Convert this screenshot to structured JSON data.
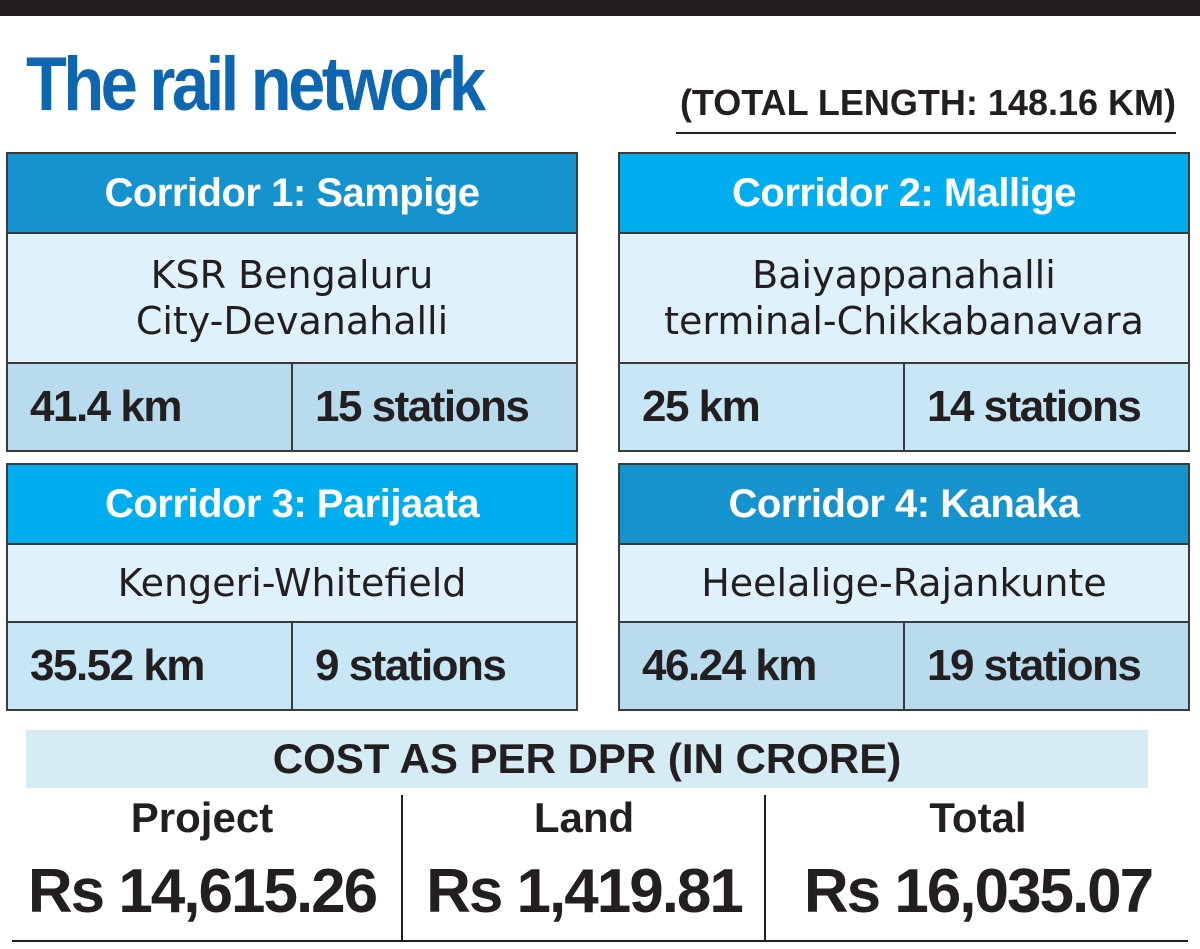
{
  "title": "The rail network",
  "total_length": "(TOTAL LENGTH: 148.16 KM)",
  "colors": {
    "title_blue": "#0f66b0",
    "header_dark_blue": "#1593cf",
    "header_light_blue": "#00aeef",
    "route_bg": "#dff1fb",
    "stat_bg_light": "#c7e6f6",
    "stat_bg_mid": "#b8dcee"
  },
  "corridors": [
    {
      "name": "Corridor 1: Sampige",
      "route_line1": "KSR Bengaluru",
      "route_line2": "City-Devanahalli",
      "length": "41.4 km",
      "stations": "15 stations"
    },
    {
      "name": "Corridor 2: Mallige",
      "route_line1": "Baiyappanahalli",
      "route_line2": "terminal-Chikkabanavara",
      "length": "25 km",
      "stations": "14 stations"
    },
    {
      "name": "Corridor 3: Parijaata",
      "route_line1": "Kengeri-Whitefield",
      "route_line2": "",
      "length": "35.52 km",
      "stations": "9 stations"
    },
    {
      "name": "Corridor 4: Kanaka",
      "route_line1": "Heelalige-Rajankunte",
      "route_line2": "",
      "length": "46.24 km",
      "stations": "19 stations"
    }
  ],
  "cost": {
    "heading": "COST AS PER DPR (IN CRORE)",
    "items": [
      {
        "label": "Project",
        "value": "Rs 14,615.26"
      },
      {
        "label": "Land",
        "value": "Rs 1,419.81"
      },
      {
        "label": "Total",
        "value": "Rs 16,035.07"
      }
    ]
  }
}
